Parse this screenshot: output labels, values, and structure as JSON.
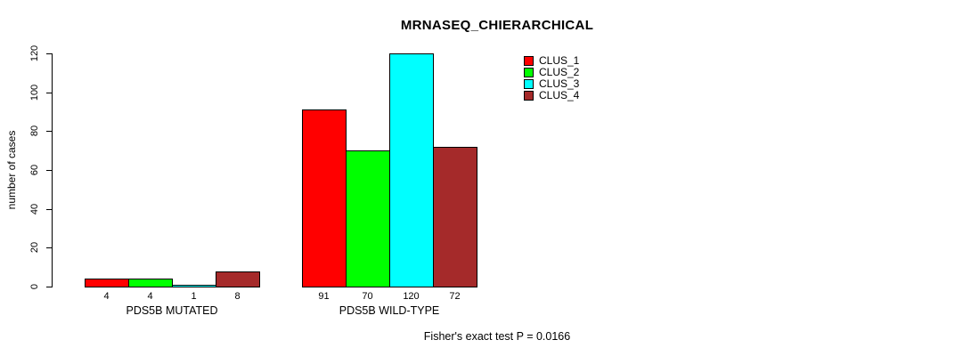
{
  "chart_data": {
    "type": "bar",
    "title": "MRNASEQ_CHIERARCHICAL",
    "ylabel": "number of cases",
    "ylim": [
      0,
      120
    ],
    "yticks": [
      0,
      20,
      40,
      60,
      80,
      100,
      120
    ],
    "grid": false,
    "legend_position": "top-right",
    "categories": [
      "PDS5B MUTATED",
      "PDS5B WILD-TYPE"
    ],
    "series": [
      {
        "name": "CLUS_1",
        "color": "#FF0000",
        "values": [
          4,
          91
        ]
      },
      {
        "name": "CLUS_2",
        "color": "#00FF00",
        "values": [
          4,
          70
        ]
      },
      {
        "name": "CLUS_3",
        "color": "#00FFFF",
        "values": [
          1,
          120
        ]
      },
      {
        "name": "CLUS_4",
        "color": "#A52A2A",
        "values": [
          8,
          72
        ]
      }
    ],
    "groups": [
      {
        "label": "PDS5B MUTATED",
        "values": [
          4,
          4,
          1,
          8
        ]
      },
      {
        "label": "PDS5B WILD-TYPE",
        "values": [
          91,
          70,
          120,
          72
        ]
      }
    ],
    "footnote": "Fisher's exact test P = 0.0166"
  }
}
